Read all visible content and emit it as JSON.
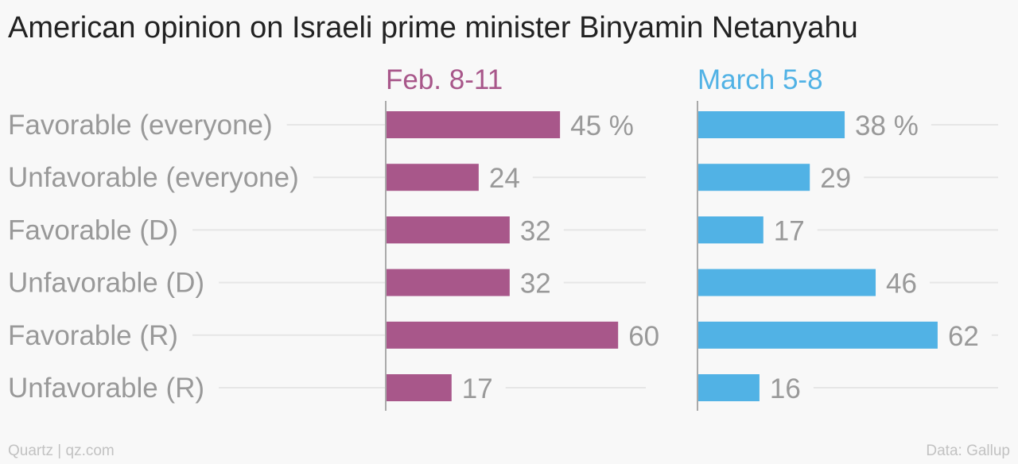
{
  "chart_data": {
    "type": "bar",
    "orientation": "horizontal",
    "title": "American opinion on Israeli prime minister Binyamin Netanyahu",
    "categories": [
      "Favorable (everyone)",
      "Unfavorable (everyone)",
      "Favorable (D)",
      "Unfavorable (D)",
      "Favorable (R)",
      "Unfavorable (R)"
    ],
    "series": [
      {
        "name": "Feb. 8-11",
        "color": "#a8578a",
        "values": [
          45,
          24,
          32,
          32,
          60,
          17
        ],
        "labels": [
          "45 %",
          "24",
          "32",
          "32",
          "60",
          "17"
        ]
      },
      {
        "name": "March 5-8",
        "color": "#51b2e5",
        "values": [
          38,
          29,
          17,
          46,
          62,
          16
        ],
        "labels": [
          "38 %",
          "29",
          "17",
          "46",
          "62",
          "16"
        ]
      }
    ],
    "grid": true,
    "legend": "panel headers"
  },
  "footer": {
    "source_left": "Quartz | qz.com",
    "source_right": "Data: Gallup"
  },
  "colors": {
    "category_text": "#999999",
    "value_text": "#999999",
    "gridline": "#e6e6e6",
    "axis": "#aaaaaa"
  }
}
